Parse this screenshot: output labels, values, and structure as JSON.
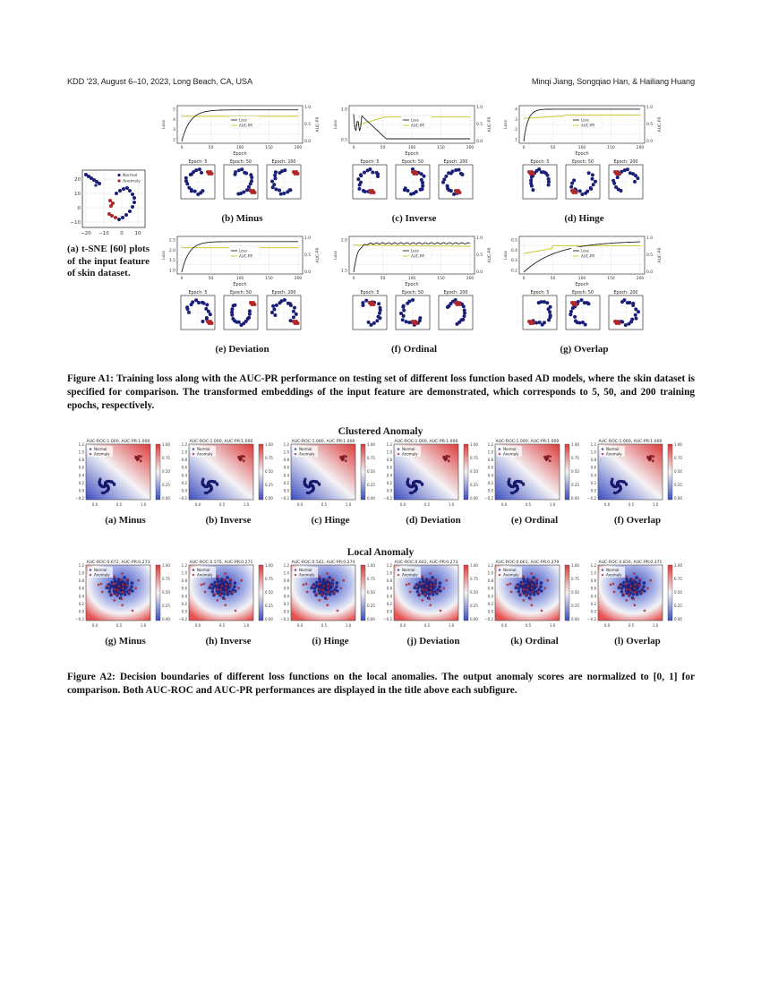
{
  "header": {
    "left": "KDD '23, August 6–10, 2023, Long Beach, CA, USA",
    "right": "Minqi Jiang, Songqiao Han, & Hailiang Huang"
  },
  "figure_a1": {
    "tsne_caption": "(a) t-SNE [60] plots of the input feature of skin dataset.",
    "tsne_legend": [
      "Normal",
      "Anomaly"
    ],
    "tsne_xticks": [
      "−20",
      "−10",
      "0",
      "10"
    ],
    "tsne_yticks": [
      "20",
      "10",
      "0",
      "−10"
    ],
    "loss_legend": [
      "Loss",
      "AUC-PR"
    ],
    "xlabel": "Epoch",
    "ylabel_left": "Loss",
    "ylabel_right": "AUC-PR",
    "epoch_titles": [
      "Epoch: 5",
      "Epoch: 50",
      "Epoch: 200"
    ],
    "panels": [
      {
        "label": "(b) Minus",
        "loss_yticks": [
          "5",
          "4",
          "3",
          "2"
        ]
      },
      {
        "label": "(c) Inverse",
        "loss_yticks": [
          "1.0",
          "0.5"
        ]
      },
      {
        "label": "(d) Hinge",
        "loss_yticks": [
          "4",
          "3",
          "2",
          "1"
        ]
      },
      {
        "label": "(e) Deviation",
        "loss_yticks": [
          "2.5",
          "2.0",
          "1.5",
          "1.0"
        ]
      },
      {
        "label": "(f) Ordinal",
        "loss_yticks": [
          "2.0",
          "1.5"
        ]
      },
      {
        "label": "(g) Overlap",
        "loss_yticks": [
          "0.5",
          "0.4",
          "0.3",
          "0.2"
        ]
      }
    ],
    "caption": "Figure A1: Training loss along with the AUC-PR performance on testing set of different loss function based AD models, where the skin dataset is specified for comparison. The transformed embeddings of the input feature are demonstrated, which corresponds to 5, 50, and 200 training epochs, respectively."
  },
  "figure_a2": {
    "clustered_title": "Clustered Anomaly",
    "local_title": "Local Anomaly",
    "legend": [
      "Normal",
      "Anomaly"
    ],
    "xticks": [
      "0.0",
      "0.5",
      "1.0"
    ],
    "yticks": [
      "1.2",
      "1.0",
      "0.8",
      "0.6",
      "0.4",
      "0.2",
      "0.0",
      "−0.2"
    ],
    "cbar_ticks": [
      "1.00",
      "0.75",
      "0.50",
      "0.25",
      "0.00"
    ],
    "clustered": [
      {
        "label": "(a) Minus",
        "title": "AUC-ROC:1.000,   AUC-PR:1.000"
      },
      {
        "label": "(b) Inverse",
        "title": "AUC-ROC:1.000,   AUC-PR:1.000"
      },
      {
        "label": "(c) Hinge",
        "title": "AUC-ROC:1.000,   AUC-PR:1.000"
      },
      {
        "label": "(d) Deviation",
        "title": "AUC-ROC:1.000,   AUC-PR:1.000"
      },
      {
        "label": "(e) Ordinal",
        "title": "AUC-ROC:1.000,   AUC-PR:1.000"
      },
      {
        "label": "(f) Overlap",
        "title": "AUC-ROC:1.000,   AUC-PR:1.000"
      }
    ],
    "local": [
      {
        "label": "(g) Minus",
        "title": "AUC-ROC:0.672,   AUC-PR:0.273"
      },
      {
        "label": "(h) Inverse",
        "title": "AUC-ROC:0.575,   AUC-PR:0.271"
      },
      {
        "label": "(i) Hinge",
        "title": "AUC-ROC:0.542,   AUC-PR:0.274"
      },
      {
        "label": "(j) Deviation",
        "title": "AUC-ROC:0.602,   AUC-PR:0.273"
      },
      {
        "label": "(k) Ordinal",
        "title": "AUC-ROC:0.661,   AUC-PR:0.279"
      },
      {
        "label": "(l) Overlap",
        "title": "AUC-ROC:0.816,   AUC-PR:0.371"
      }
    ],
    "caption": "Figure A2: Decision boundaries of different loss functions on the local anomalies. The output anomaly scores are normalized to [0, 1] for comparison. Both AUC-ROC and AUC-PR performances are displayed in the title above each subfigure."
  },
  "colors": {
    "normal": "#1a1f7a",
    "anomaly": "#b0282a",
    "loss_line": "#222222",
    "aucpr_line": "#c8c832",
    "cmap_low": "#3b4cc0",
    "cmap_high": "#dd3a3a"
  }
}
